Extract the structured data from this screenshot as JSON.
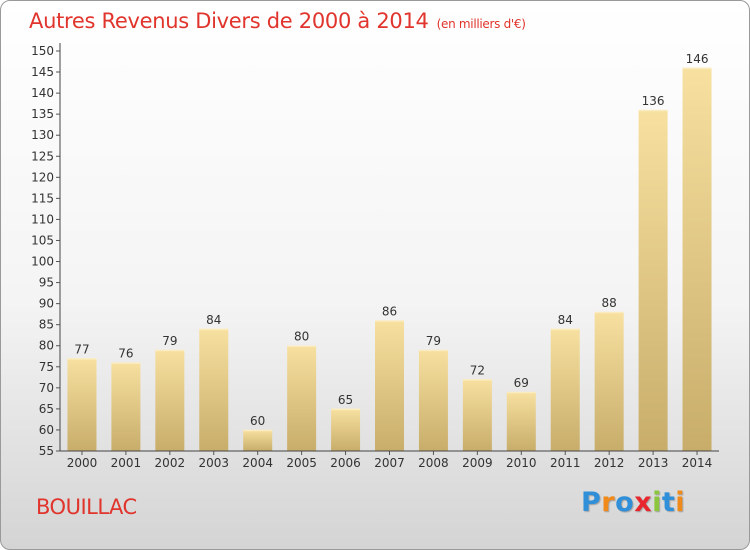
{
  "chart_data": {
    "type": "bar",
    "title": "Autres Revenus Divers de 2000 à 2014",
    "subtitle": "(en milliers d'€)",
    "categories": [
      "2000",
      "2001",
      "2002",
      "2003",
      "2004",
      "2005",
      "2006",
      "2007",
      "2008",
      "2009",
      "2010",
      "2011",
      "2012",
      "2013",
      "2014"
    ],
    "values": [
      77,
      76,
      79,
      84,
      60,
      80,
      65,
      86,
      79,
      72,
      69,
      84,
      88,
      136,
      146
    ],
    "ylim": [
      55,
      150
    ],
    "yticks": [
      55,
      60,
      65,
      70,
      75,
      80,
      85,
      90,
      95,
      100,
      105,
      110,
      115,
      120,
      125,
      130,
      135,
      140,
      145,
      150
    ],
    "grid": false,
    "bar_color_top": "#f7e0a0",
    "bar_color_bottom": "#c8ad6a"
  },
  "footer": {
    "commune": "BOUILLAC",
    "logo": [
      "P",
      "r",
      "o",
      "x",
      "i",
      "t",
      "i"
    ],
    "logo_colors": [
      "#2f8fd8",
      "#f08a1a",
      "#2f8fd8",
      "#e8262d",
      "#8cc63f",
      "#2f8fd8",
      "#f08a1a"
    ]
  }
}
